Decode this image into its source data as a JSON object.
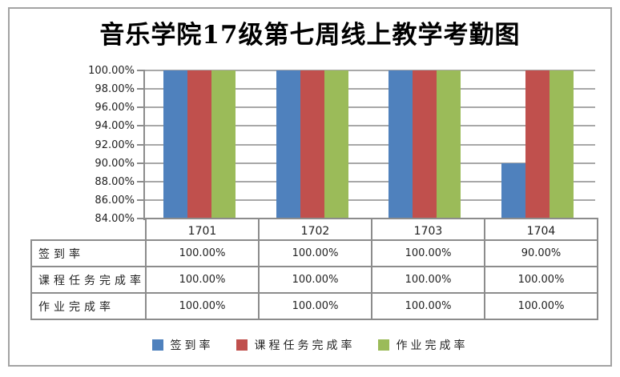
{
  "title": "音乐学院17级第七周线上教学考勤图",
  "chart_data": {
    "type": "bar",
    "title": "音乐学院17级第七周线上教学考勤图",
    "categories": [
      "1701",
      "1702",
      "1703",
      "1704"
    ],
    "series": [
      {
        "name": "签到率",
        "color": "#4F81BD",
        "values": [
          100.0,
          100.0,
          100.0,
          90.0
        ]
      },
      {
        "name": "课程任务完成率",
        "color": "#C0504D",
        "values": [
          100.0,
          100.0,
          100.0,
          100.0
        ]
      },
      {
        "name": "作业完成率",
        "color": "#9BBB59",
        "values": [
          100.0,
          100.0,
          100.0,
          100.0
        ]
      }
    ],
    "ylim": [
      84,
      100
    ],
    "yticks": [
      100,
      98,
      96,
      94,
      92,
      90,
      88,
      86,
      84
    ],
    "ytick_labels": [
      "100.00%",
      "98.00%",
      "96.00%",
      "94.00%",
      "92.00%",
      "90.00%",
      "88.00%",
      "86.00%",
      "84.00%"
    ],
    "grid": true,
    "legend_position": "bottom",
    "data_table": {
      "rows": [
        {
          "label": "签到率",
          "values": [
            "100.00%",
            "100.00%",
            "100.00%",
            "90.00%"
          ]
        },
        {
          "label": "课程任务完成率",
          "values": [
            "100.00%",
            "100.00%",
            "100.00%",
            "100.00%"
          ]
        },
        {
          "label": "作业完成率",
          "values": [
            "100.00%",
            "100.00%",
            "100.00%",
            "100.00%"
          ]
        }
      ]
    },
    "legend_items": [
      {
        "label": "签到率",
        "color": "#4F81BD"
      },
      {
        "label": "课程任务完成率",
        "color": "#C0504D"
      },
      {
        "label": "作业完成率",
        "color": "#9BBB59"
      }
    ],
    "colors": {
      "gridline": "#a8a8a8",
      "axis": "#8c8c8c",
      "table_border": "#8c8c8c",
      "frame_border": "#a3a3a3"
    }
  }
}
